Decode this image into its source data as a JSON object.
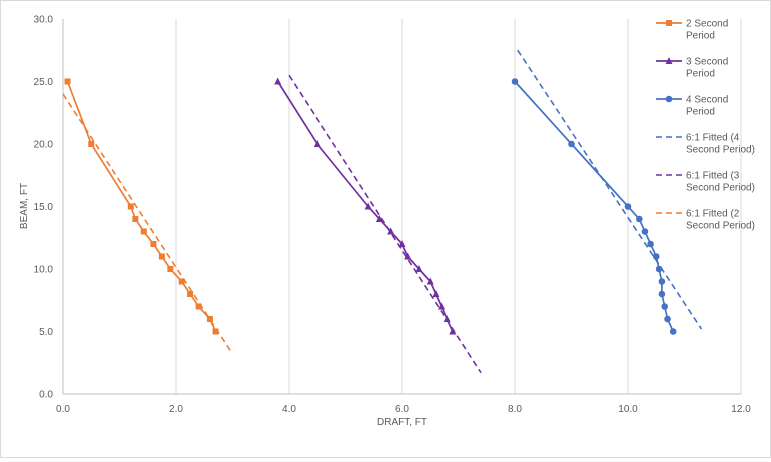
{
  "chart_data": {
    "type": "scatter",
    "title": "",
    "xlabel": "DRAFT, FT",
    "ylabel": "BEAM, FT",
    "xlim": [
      0,
      12
    ],
    "ylim": [
      0,
      30
    ],
    "x_ticks": [
      "0.0",
      "2.0",
      "4.0",
      "6.0",
      "8.0",
      "10.0",
      "12.0"
    ],
    "y_ticks": [
      "0.0",
      "5.0",
      "10.0",
      "15.0",
      "20.0",
      "25.0",
      "30.0"
    ],
    "x_tick_values": [
      0,
      2,
      4,
      6,
      8,
      10,
      12
    ],
    "y_tick_values": [
      0,
      5,
      10,
      15,
      20,
      25,
      30
    ],
    "grid": "vertical",
    "legend_position": "right",
    "series": [
      {
        "name": "2 Second Period",
        "style": "solid",
        "marker": "square",
        "color": "#ED7D31",
        "points": [
          [
            0.08,
            25
          ],
          [
            0.5,
            20
          ],
          [
            1.2,
            15
          ],
          [
            1.28,
            14
          ],
          [
            1.43,
            13
          ],
          [
            1.6,
            12
          ],
          [
            1.75,
            11
          ],
          [
            1.9,
            10
          ],
          [
            2.1,
            9
          ],
          [
            2.25,
            8
          ],
          [
            2.4,
            7
          ],
          [
            2.6,
            6
          ],
          [
            2.7,
            5
          ]
        ]
      },
      {
        "name": "3 Second Period",
        "style": "solid",
        "marker": "triangle",
        "color": "#7030A0",
        "points": [
          [
            3.8,
            25
          ],
          [
            4.5,
            20
          ],
          [
            5.4,
            15
          ],
          [
            5.6,
            14
          ],
          [
            5.8,
            13
          ],
          [
            6.0,
            12
          ],
          [
            6.1,
            11
          ],
          [
            6.3,
            10
          ],
          [
            6.5,
            9
          ],
          [
            6.6,
            8
          ],
          [
            6.7,
            7
          ],
          [
            6.8,
            6
          ],
          [
            6.9,
            5
          ]
        ]
      },
      {
        "name": "4 Second Period",
        "style": "solid",
        "marker": "circle",
        "color": "#4472C4",
        "points": [
          [
            8.0,
            25
          ],
          [
            9.0,
            20
          ],
          [
            10.0,
            15
          ],
          [
            10.2,
            14
          ],
          [
            10.3,
            13
          ],
          [
            10.4,
            12
          ],
          [
            10.5,
            11
          ],
          [
            10.55,
            10
          ],
          [
            10.6,
            9
          ],
          [
            10.6,
            8
          ],
          [
            10.65,
            7
          ],
          [
            10.7,
            6
          ],
          [
            10.8,
            5
          ]
        ]
      },
      {
        "name": "6:1 Fitted (4 Second Period)",
        "style": "dashed",
        "marker": "none",
        "color": "#4472C4",
        "points": [
          [
            8.05,
            27.5
          ],
          [
            11.3,
            5.2
          ]
        ]
      },
      {
        "name": "6:1 Fitted (3 Second Period)",
        "style": "dashed",
        "marker": "none",
        "color": "#7030A0",
        "points": [
          [
            4.0,
            25.5
          ],
          [
            7.4,
            1.7
          ]
        ]
      },
      {
        "name": "6:1 Fitted (2 Second Period)",
        "style": "dashed",
        "marker": "none",
        "color": "#ED7D31",
        "points": [
          [
            0.0,
            24.0
          ],
          [
            2.97,
            3.4
          ]
        ]
      }
    ]
  },
  "legend": [
    {
      "lines": [
        "2 Second",
        "Period"
      ]
    },
    {
      "lines": [
        "3 Second",
        "Period"
      ]
    },
    {
      "lines": [
        "4 Second",
        "Period"
      ]
    },
    {
      "lines": [
        "6:1 Fitted (4",
        "Second Period)"
      ]
    },
    {
      "lines": [
        "6:1 Fitted (3",
        "Second Period)"
      ]
    },
    {
      "lines": [
        "6:1 Fitted (2",
        "Second Period)"
      ]
    }
  ]
}
